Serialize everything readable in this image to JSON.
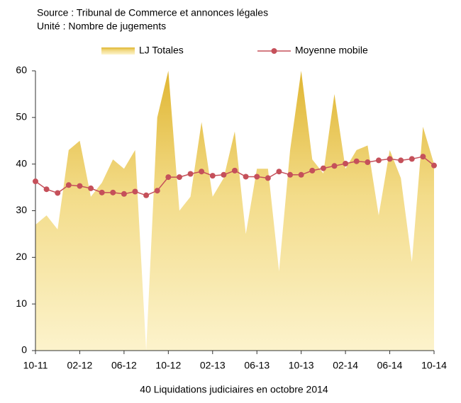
{
  "chart_data": {
    "type": "area-line",
    "subtitle": [
      "Source : Tribunal de Commerce et annonces légales",
      "Unité : Nombre de jugements"
    ],
    "caption": "40 Liquidations judiciaires en octobre 2014",
    "categories": [
      "10-11",
      null,
      null,
      null,
      "02-12",
      null,
      null,
      null,
      "06-12",
      null,
      null,
      null,
      "10-12",
      null,
      null,
      null,
      "02-13",
      null,
      null,
      null,
      "06-13",
      null,
      null,
      null,
      "10-13",
      null,
      null,
      null,
      "02-14",
      null,
      null,
      null,
      "06-14",
      null,
      null,
      null,
      "10-14"
    ],
    "series": [
      {
        "name": "LJ Totales",
        "type": "area",
        "color": "#e3bb3c",
        "values": [
          27,
          29,
          26,
          43,
          45,
          33,
          36,
          41,
          39,
          43,
          0,
          50,
          60,
          30,
          33,
          49,
          33,
          37,
          47,
          25,
          39,
          39,
          17,
          43,
          60,
          41,
          38,
          55,
          39,
          43,
          44,
          29,
          43,
          37,
          19,
          48,
          40
        ]
      },
      {
        "name": "Moyenne mobile",
        "type": "line",
        "color": "#c5505a",
        "values": [
          36.3,
          34.6,
          33.8,
          35.5,
          35.3,
          34.8,
          33.9,
          33.9,
          33.6,
          34.1,
          33.3,
          34.3,
          37.2,
          37.2,
          37.9,
          38.4,
          37.5,
          37.7,
          38.6,
          37.3,
          37.3,
          37.0,
          38.4,
          37.7,
          37.7,
          38.6,
          39.1,
          39.6,
          40.1,
          40.6,
          40.4,
          40.8,
          41.1,
          40.8,
          41.1,
          41.6,
          39.7
        ]
      }
    ],
    "ylim": [
      0,
      60
    ],
    "yticks": [
      0,
      10,
      20,
      30,
      40,
      50,
      60
    ],
    "grid": false
  }
}
